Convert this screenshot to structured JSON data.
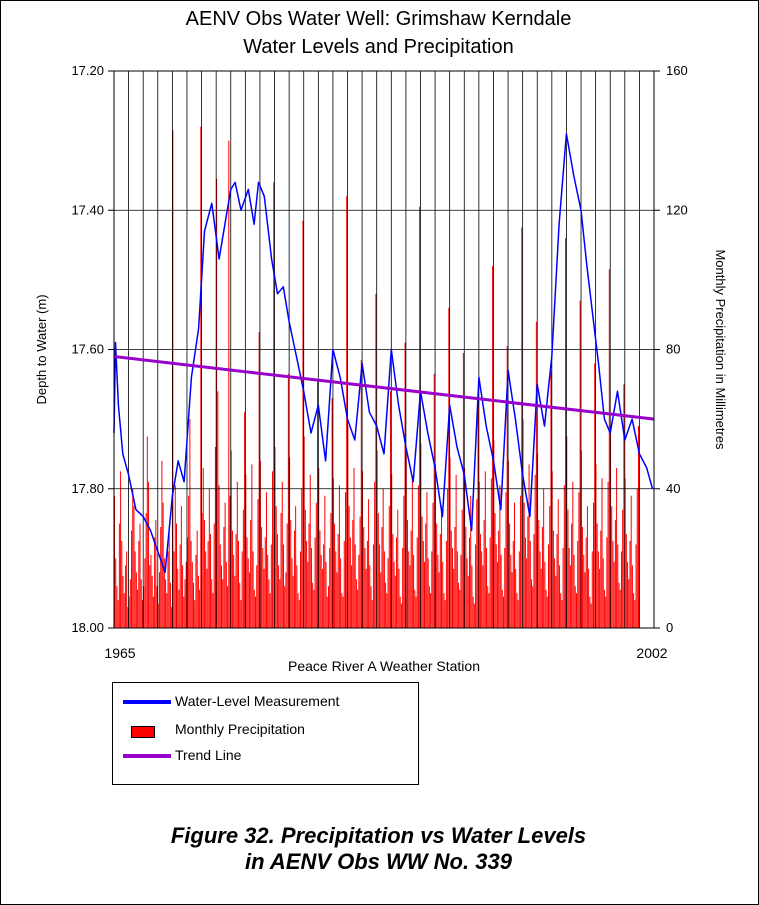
{
  "chart_data": {
    "type": "line+bar",
    "title": "AENV Obs Water Well: Grimshaw Kerndale",
    "subtitle": "Water Levels and Precipitation",
    "xlabel": "Peace River A Weather Station",
    "ylabel_left": "Depth to Water (m)",
    "ylabel_right": "Monthly Precipitation in Millimetres",
    "x_range": [
      1965,
      2002
    ],
    "x_tick_labels": [
      "1965",
      "2002"
    ],
    "y_left_range": [
      17.2,
      18.0
    ],
    "y_left_inverted": true,
    "y_left_ticks": [
      "17.20",
      "17.40",
      "17.60",
      "17.80",
      "18.00"
    ],
    "y_right_range": [
      0,
      160
    ],
    "y_right_ticks": [
      "160",
      "120",
      "80",
      "40",
      "0"
    ],
    "grid": true,
    "legend_position": "below chart, left",
    "series": [
      {
        "name": "Water-Level Measurement",
        "type": "line",
        "axis": "left",
        "color": "#0000ff",
        "x": [
          1965.0,
          1965.1,
          1965.3,
          1965.6,
          1966.0,
          1966.5,
          1967.0,
          1967.5,
          1968.0,
          1968.5,
          1969.0,
          1969.4,
          1969.8,
          1970.3,
          1970.8,
          1971.2,
          1971.7,
          1972.2,
          1972.6,
          1973.0,
          1973.3,
          1973.7,
          1974.2,
          1974.6,
          1974.9,
          1975.3,
          1975.8,
          1976.2,
          1976.6,
          1977.0,
          1977.6,
          1978.0,
          1978.5,
          1979.0,
          1979.5,
          1980.0,
          1980.5,
          1981.0,
          1981.5,
          1982.0,
          1982.5,
          1983.0,
          1983.5,
          1984.0,
          1984.5,
          1985.0,
          1985.5,
          1986.0,
          1986.5,
          1987.0,
          1987.5,
          1988.0,
          1988.5,
          1989.0,
          1989.5,
          1990.0,
          1990.5,
          1991.0,
          1991.5,
          1992.0,
          1992.5,
          1993.0,
          1993.5,
          1994.0,
          1994.5,
          1995.0,
          1995.5,
          1996.0,
          1996.5,
          1997.0,
          1997.4,
          1997.8,
          1998.2,
          1998.6,
          1999.0,
          1999.5,
          2000.0,
          2000.5,
          2001.0,
          2001.5,
          2001.9
        ],
        "y": [
          17.72,
          17.59,
          17.68,
          17.75,
          17.78,
          17.83,
          17.84,
          17.86,
          17.89,
          17.92,
          17.81,
          17.76,
          17.79,
          17.64,
          17.57,
          17.43,
          17.39,
          17.47,
          17.42,
          17.37,
          17.36,
          17.4,
          17.37,
          17.42,
          17.36,
          17.38,
          17.47,
          17.52,
          17.51,
          17.56,
          17.62,
          17.66,
          17.72,
          17.68,
          17.76,
          17.6,
          17.64,
          17.7,
          17.73,
          17.62,
          17.69,
          17.71,
          17.75,
          17.6,
          17.68,
          17.74,
          17.79,
          17.66,
          17.72,
          17.77,
          17.84,
          17.68,
          17.74,
          17.78,
          17.86,
          17.64,
          17.71,
          17.76,
          17.83,
          17.63,
          17.7,
          17.78,
          17.84,
          17.65,
          17.71,
          17.61,
          17.42,
          17.29,
          17.35,
          17.4,
          17.48,
          17.55,
          17.62,
          17.7,
          17.72,
          17.66,
          17.73,
          17.7,
          17.75,
          17.77,
          17.8
        ]
      },
      {
        "name": "Monthly Precipitation",
        "type": "bar",
        "axis": "right",
        "color": "#ff0000",
        "x_start": 1965,
        "x_step": 0.0833,
        "values": [
          38,
          20,
          12,
          8,
          30,
          45,
          25,
          15,
          10,
          18,
          22,
          6,
          9,
          14,
          28,
          40,
          35,
          22,
          16,
          11,
          25,
          30,
          14,
          8,
          12,
          20,
          33,
          55,
          42,
          18,
          21,
          15,
          9,
          26,
          31,
          12,
          7,
          16,
          29,
          48,
          36,
          20,
          14,
          10,
          22,
          27,
          13,
          6,
          143,
          22,
          41,
          30,
          17,
          11,
          24,
          35,
          18,
          9,
          14,
          19,
          26,
          38,
          60,
          25,
          19,
          13,
          8,
          21,
          28,
          15,
          11,
          144,
          33,
          46,
          31,
          22,
          17,
          25,
          40,
          27,
          14,
          10,
          30,
          52,
          129,
          68,
          41,
          24,
          18,
          14,
          29,
          36,
          19,
          12,
          140,
          38,
          51,
          28,
          21,
          15,
          27,
          42,
          25,
          13,
          8,
          22,
          34,
          62,
          44,
          26,
          20,
          16,
          31,
          47,
          22,
          11,
          9,
          18,
          37,
          85,
          48,
          29,
          23,
          17,
          26,
          39,
          21,
          14,
          10,
          24,
          45,
          128,
          52,
          35,
          27,
          18,
          14,
          33,
          42,
          24,
          12,
          16,
          30,
          73,
          49,
          31,
          20,
          15,
          28,
          35,
          18,
          10,
          8,
          22,
          40,
          117,
          55,
          34,
          25,
          19,
          30,
          44,
          23,
          13,
          11,
          26,
          36,
          71,
          46,
          28,
          21,
          17,
          24,
          38,
          19,
          9,
          12,
          23,
          33,
          66,
          43,
          30,
          22,
          16,
          27,
          41,
          20,
          10,
          9,
          25,
          39,
          124,
          58,
          35,
          26,
          18,
          31,
          46,
          24,
          14,
          11,
          21,
          32,
          77,
          45,
          29,
          23,
          17,
          25,
          37,
          18,
          12,
          8,
          24,
          42,
          96,
          51,
          33,
          24,
          16,
          29,
          40,
          22,
          13,
          10,
          20,
          35,
          68,
          44,
          27,
          19,
          15,
          26,
          34,
          17,
          9,
          7,
          23,
          38,
          82,
          50,
          31,
          22,
          18,
          28,
          43,
          21,
          11,
          9,
          26,
          41,
          121,
          53,
          32,
          25,
          19,
          30,
          39,
          20,
          12,
          10,
          22,
          36,
          73,
          47,
          30,
          21,
          16,
          27,
          35,
          19,
          10,
          8,
          25,
          40,
          92,
          49,
          28,
          23,
          17,
          29,
          44,
          22,
          13,
          11,
          21,
          34,
          79,
          46,
          29,
          20,
          15,
          26,
          38,
          18,
          9,
          7,
          24,
          37,
          67,
          42,
          27,
          22,
          18,
          31,
          45,
          23,
          12,
          10,
          26,
          43,
          104,
          54,
          33,
          24,
          19,
          28,
          41,
          21,
          11,
          9,
          23,
          39,
          81,
          48,
          30,
          21,
          16,
          25,
          36,
          17,
          10,
          8,
          22,
          38,
          115,
          60,
          36,
          26,
          20,
          32,
          47,
          25,
          14,
          12,
          27,
          44,
          88,
          50,
          31,
          22,
          17,
          29,
          40,
          19,
          11,
          9,
          24,
          35,
          74,
          45,
          28,
          20,
          15,
          27,
          37,
          18,
          10,
          8,
          23,
          41,
          112,
          55,
          34,
          23,
          18,
          30,
          42,
          21,
          12,
          10,
          25,
          39,
          94,
          51,
          29,
          21,
          16,
          26,
          35,
          17,
          9,
          7,
          22,
          36,
          76,
          47,
          30,
          22,
          17,
          28,
          43,
          20,
          11,
          9,
          26,
          42,
          103,
          56,
          35,
          25,
          19,
          31,
          46,
          24,
          13,
          11,
          22,
          34,
          70,
          43,
          27,
          19,
          14,
          25,
          38,
          18,
          10,
          8,
          24,
          40,
          58
        ]
      },
      {
        "name": "Trend Line",
        "type": "line",
        "axis": "left",
        "color": "#9900cc",
        "x": [
          1965,
          2002
        ],
        "y": [
          17.61,
          17.7
        ]
      }
    ]
  },
  "caption": {
    "line1": "Figure 32. Precipitation vs Water Levels",
    "line2": "in AENV Obs WW No. 339"
  }
}
